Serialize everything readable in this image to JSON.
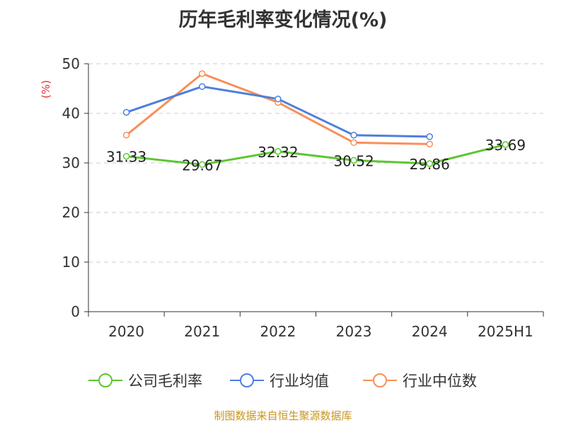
{
  "chart_data": {
    "type": "line",
    "title": "历年毛利率变化情况(%)",
    "ylabel": "(%)",
    "xlabel": "",
    "categories": [
      "2020",
      "2021",
      "2022",
      "2023",
      "2024",
      "2025H1"
    ],
    "ylim": [
      0,
      50
    ],
    "yticks": [
      0,
      10,
      20,
      30,
      40,
      50
    ],
    "grid": true,
    "legend_position": "bottom",
    "series": [
      {
        "name": "公司毛利率",
        "color": "#5cc631",
        "values": [
          31.33,
          29.67,
          32.32,
          30.52,
          29.86,
          33.69
        ],
        "show_labels": true
      },
      {
        "name": "行业均值",
        "color": "#4e7fdc",
        "values": [
          40.2,
          45.4,
          42.9,
          35.6,
          35.3,
          null
        ],
        "show_labels": false
      },
      {
        "name": "行业中位数",
        "color": "#f7905a",
        "values": [
          35.6,
          48.0,
          42.2,
          34.1,
          33.8,
          null
        ],
        "show_labels": false
      }
    ]
  },
  "footer": {
    "source": "制图数据来自恒生聚源数据库"
  }
}
